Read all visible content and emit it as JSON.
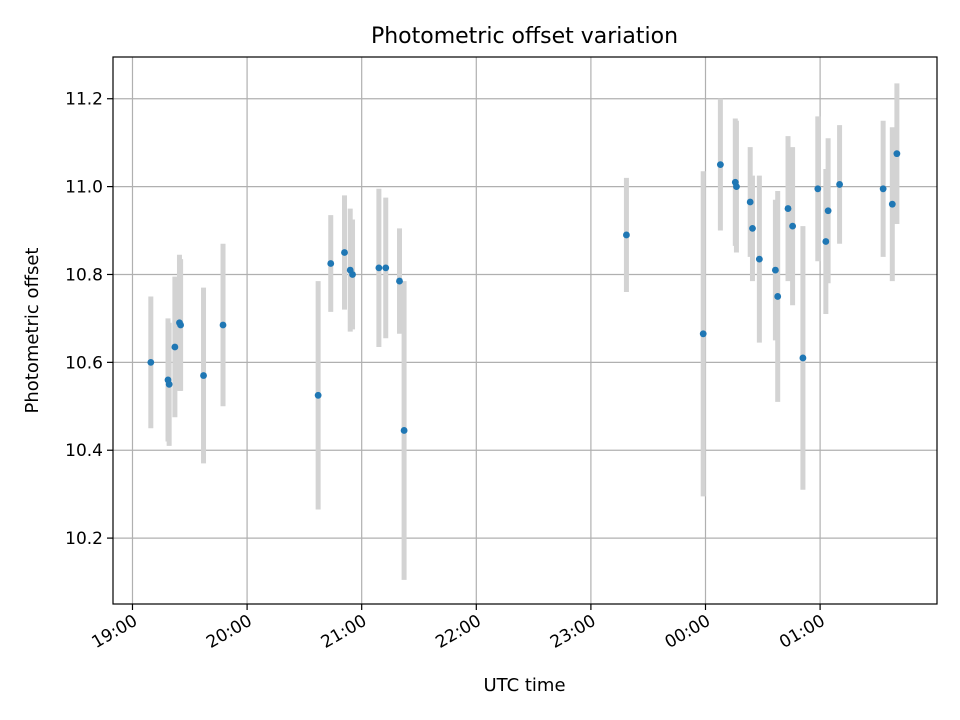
{
  "chart_data": {
    "type": "scatter",
    "title": "Photometric offset variation",
    "xlabel": "UTC time",
    "ylabel": "Photometric offset",
    "grid": true,
    "x_unit": "hours from 19:00 UTC",
    "xlim": [
      -0.17,
      7.02
    ],
    "ylim": [
      10.05,
      11.295
    ],
    "x_ticks": [
      {
        "value": 0,
        "label": "19:00"
      },
      {
        "value": 1,
        "label": "20:00"
      },
      {
        "value": 2,
        "label": "21:00"
      },
      {
        "value": 3,
        "label": "22:00"
      },
      {
        "value": 4,
        "label": "23:00"
      },
      {
        "value": 5,
        "label": "00:00"
      },
      {
        "value": 6,
        "label": "01:00"
      }
    ],
    "y_ticks": [
      {
        "value": 10.2,
        "label": "10.2"
      },
      {
        "value": 10.4,
        "label": "10.4"
      },
      {
        "value": 10.6,
        "label": "10.6"
      },
      {
        "value": 10.8,
        "label": "10.8"
      },
      {
        "value": 11.0,
        "label": "11.0"
      },
      {
        "value": 11.2,
        "label": "11.2"
      }
    ],
    "marker_color": "#1f77b4",
    "errorbar_color": "#d3d3d3",
    "series": [
      {
        "name": "offset",
        "points": [
          {
            "x": 0.16,
            "y": 10.6,
            "err": 0.15
          },
          {
            "x": 0.31,
            "y": 10.56,
            "err": 0.14
          },
          {
            "x": 0.32,
            "y": 10.55,
            "err": 0.14
          },
          {
            "x": 0.37,
            "y": 10.635,
            "err": 0.16
          },
          {
            "x": 0.41,
            "y": 10.69,
            "err": 0.155
          },
          {
            "x": 0.42,
            "y": 10.685,
            "err": 0.15
          },
          {
            "x": 0.62,
            "y": 10.57,
            "err": 0.2
          },
          {
            "x": 0.79,
            "y": 10.685,
            "err": 0.185
          },
          {
            "x": 1.62,
            "y": 10.525,
            "err": 0.26
          },
          {
            "x": 1.73,
            "y": 10.825,
            "err": 0.11
          },
          {
            "x": 1.85,
            "y": 10.85,
            "err": 0.13
          },
          {
            "x": 1.9,
            "y": 10.81,
            "err": 0.14
          },
          {
            "x": 1.92,
            "y": 10.8,
            "err": 0.125
          },
          {
            "x": 2.15,
            "y": 10.815,
            "err": 0.18
          },
          {
            "x": 2.21,
            "y": 10.815,
            "err": 0.16
          },
          {
            "x": 2.33,
            "y": 10.785,
            "err": 0.12
          },
          {
            "x": 2.37,
            "y": 10.445,
            "err": 0.34
          },
          {
            "x": 4.31,
            "y": 10.89,
            "err": 0.13
          },
          {
            "x": 4.98,
            "y": 10.665,
            "err": 0.37
          },
          {
            "x": 5.13,
            "y": 11.05,
            "err": 0.15
          },
          {
            "x": 5.26,
            "y": 11.01,
            "err": 0.145
          },
          {
            "x": 5.27,
            "y": 11.0,
            "err": 0.15
          },
          {
            "x": 5.39,
            "y": 10.965,
            "err": 0.125
          },
          {
            "x": 5.41,
            "y": 10.905,
            "err": 0.12
          },
          {
            "x": 5.47,
            "y": 10.835,
            "err": 0.19
          },
          {
            "x": 5.61,
            "y": 10.81,
            "err": 0.16
          },
          {
            "x": 5.63,
            "y": 10.75,
            "err": 0.24
          },
          {
            "x": 5.72,
            "y": 10.95,
            "err": 0.165
          },
          {
            "x": 5.76,
            "y": 10.91,
            "err": 0.18
          },
          {
            "x": 5.85,
            "y": 10.61,
            "err": 0.3
          },
          {
            "x": 5.98,
            "y": 10.995,
            "err": 0.165
          },
          {
            "x": 6.05,
            "y": 10.875,
            "err": 0.165
          },
          {
            "x": 6.07,
            "y": 10.945,
            "err": 0.165
          },
          {
            "x": 6.17,
            "y": 11.005,
            "err": 0.135
          },
          {
            "x": 6.55,
            "y": 10.995,
            "err": 0.155
          },
          {
            "x": 6.63,
            "y": 10.96,
            "err": 0.175
          },
          {
            "x": 6.67,
            "y": 11.075,
            "err": 0.16
          }
        ]
      }
    ]
  }
}
